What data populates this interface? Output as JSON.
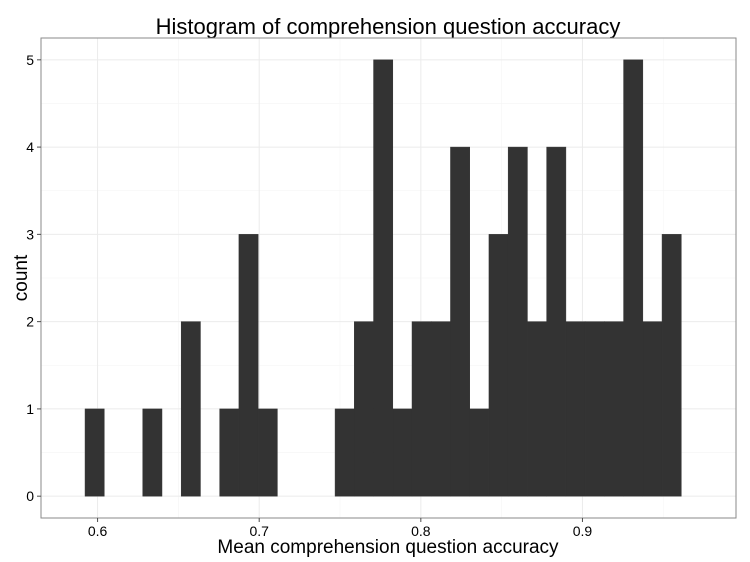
{
  "chart_data": {
    "type": "bar",
    "title": "Histogram of comprehension question accuracy",
    "xlabel": "Mean comprehension question accuracy",
    "ylabel": "count",
    "xlim": [
      0.565,
      0.995
    ],
    "ylim": [
      -0.25,
      5.25
    ],
    "x_ticks": [
      {
        "value": 0.6,
        "label": "0.6"
      },
      {
        "value": 0.7,
        "label": "0.7"
      },
      {
        "value": 0.8,
        "label": "0.8"
      },
      {
        "value": 0.9,
        "label": "0.9"
      }
    ],
    "y_ticks": [
      {
        "value": 0,
        "label": "0"
      },
      {
        "value": 1,
        "label": "1"
      },
      {
        "value": 2,
        "label": "2"
      },
      {
        "value": 3,
        "label": "3"
      },
      {
        "value": 4,
        "label": "4"
      },
      {
        "value": 5,
        "label": "5"
      }
    ],
    "bin_width": 0.0119,
    "bins": [
      {
        "x": 0.5982,
        "count": 1
      },
      {
        "x": 0.6101,
        "count": 0
      },
      {
        "x": 0.622,
        "count": 0
      },
      {
        "x": 0.6339,
        "count": 1
      },
      {
        "x": 0.6458,
        "count": 0
      },
      {
        "x": 0.6577,
        "count": 2
      },
      {
        "x": 0.6696,
        "count": 0
      },
      {
        "x": 0.6815,
        "count": 1
      },
      {
        "x": 0.6934,
        "count": 3
      },
      {
        "x": 0.7053,
        "count": 1
      },
      {
        "x": 0.7172,
        "count": 0
      },
      {
        "x": 0.7291,
        "count": 0
      },
      {
        "x": 0.741,
        "count": 0
      },
      {
        "x": 0.7529,
        "count": 1
      },
      {
        "x": 0.7648,
        "count": 2
      },
      {
        "x": 0.7767,
        "count": 5
      },
      {
        "x": 0.7886,
        "count": 1
      },
      {
        "x": 0.8005,
        "count": 2
      },
      {
        "x": 0.8124,
        "count": 2
      },
      {
        "x": 0.8243,
        "count": 4
      },
      {
        "x": 0.8362,
        "count": 1
      },
      {
        "x": 0.8481,
        "count": 3
      },
      {
        "x": 0.86,
        "count": 4
      },
      {
        "x": 0.8719,
        "count": 2
      },
      {
        "x": 0.8838,
        "count": 4
      },
      {
        "x": 0.8957,
        "count": 2
      },
      {
        "x": 0.9076,
        "count": 2
      },
      {
        "x": 0.9195,
        "count": 2
      },
      {
        "x": 0.9314,
        "count": 5
      },
      {
        "x": 0.9433,
        "count": 2
      },
      {
        "x": 0.9552,
        "count": 3
      }
    ],
    "grid": true,
    "bar_color": "#333333"
  }
}
